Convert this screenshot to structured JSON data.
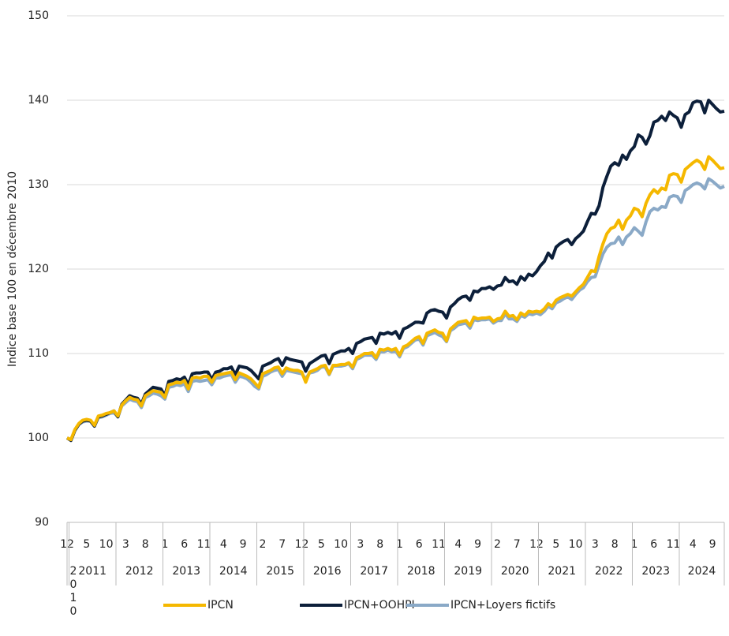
{
  "chart_data": {
    "type": "line",
    "y_label": "Indice base 100 en décembre 2010",
    "categories": [
      "12",
      null,
      null,
      null,
      null,
      "5",
      null,
      null,
      null,
      null,
      "10",
      null,
      null,
      null,
      null,
      "3",
      null,
      null,
      null,
      null,
      "8",
      null,
      null,
      null,
      null,
      "1",
      null,
      null,
      null,
      null,
      "6",
      null,
      null,
      null,
      null,
      "11",
      null,
      null,
      null,
      null,
      "4",
      null,
      null,
      null,
      null,
      "9",
      null,
      null,
      null,
      null,
      "2",
      null,
      null,
      null,
      null,
      "7",
      null,
      null,
      null,
      null,
      "12",
      null,
      null,
      null,
      null,
      "5",
      null,
      null,
      null,
      null,
      "10",
      null,
      null,
      null,
      null,
      "3",
      null,
      null,
      null,
      null,
      "8",
      null,
      null,
      null,
      null,
      "1",
      null,
      null,
      null,
      null,
      "6",
      null,
      null,
      null,
      null,
      "11",
      null,
      null,
      null,
      null,
      "4",
      null,
      null,
      null,
      null,
      "9",
      null,
      null,
      null,
      null,
      "2",
      null,
      null,
      null,
      null,
      "7",
      null,
      null,
      null,
      null,
      "12",
      null,
      null,
      null,
      null,
      "5",
      null,
      null,
      null,
      null,
      "10",
      null,
      null,
      null,
      null,
      "3",
      null,
      null,
      null,
      null,
      "8",
      null,
      null,
      null,
      null,
      "1",
      null,
      null,
      null,
      null,
      "6",
      null,
      null,
      null,
      null,
      "11",
      null,
      null,
      null,
      null,
      "4",
      null,
      null,
      null,
      null,
      "9",
      null,
      null,
      null
    ],
    "year_groups": [
      "2010",
      "2011",
      "2012",
      "2013",
      "2014",
      "2015",
      "2016",
      "2017",
      "2018",
      "2019",
      "2020",
      "2021",
      "2022",
      "2023",
      "2024"
    ],
    "ylim": [
      90,
      150
    ],
    "yticks": [
      90,
      100,
      110,
      120,
      130,
      140,
      150
    ],
    "grid": true,
    "legend": "bottom",
    "series": [
      {
        "name": "IPCN",
        "color": "#f5b800",
        "values": [
          100,
          99.8,
          101.0,
          101.7,
          102.1,
          102.2,
          102.1,
          101.5,
          102.6,
          102.7,
          102.9,
          103.0,
          103.2,
          102.6,
          103.9,
          104.4,
          104.8,
          104.6,
          104.5,
          103.8,
          105.0,
          105.3,
          105.6,
          105.5,
          105.4,
          104.8,
          106.3,
          106.4,
          106.6,
          106.5,
          106.8,
          105.8,
          107.1,
          107.2,
          107.1,
          107.3,
          107.3,
          106.6,
          107.4,
          107.5,
          107.6,
          107.7,
          107.8,
          106.9,
          107.7,
          107.5,
          107.3,
          107.0,
          106.5,
          106.0,
          107.6,
          107.8,
          108.0,
          108.3,
          108.4,
          107.6,
          108.3,
          108.1,
          108.0,
          108.0,
          107.8,
          106.6,
          107.8,
          108.0,
          108.2,
          108.5,
          108.6,
          107.6,
          108.6,
          108.6,
          108.7,
          108.7,
          108.9,
          108.4,
          109.5,
          109.7,
          110.0,
          110.0,
          110.1,
          109.5,
          110.5,
          110.4,
          110.6,
          110.4,
          110.6,
          109.8,
          110.8,
          111.0,
          111.4,
          111.8,
          112.0,
          111.2,
          112.4,
          112.6,
          112.8,
          112.5,
          112.4,
          111.5,
          112.9,
          113.3,
          113.7,
          113.8,
          113.9,
          113.3,
          114.3,
          114.1,
          114.2,
          114.2,
          114.3,
          113.8,
          114.1,
          114.2,
          115.0,
          114.4,
          114.5,
          114.0,
          114.8,
          114.5,
          115.0,
          114.9,
          115.0,
          114.9,
          115.3,
          115.9,
          115.6,
          116.3,
          116.6,
          116.8,
          117.0,
          116.8,
          117.3,
          117.8,
          118.2,
          119.0,
          119.8,
          119.7,
          121.5,
          123.0,
          124.2,
          124.8,
          125.0,
          125.8,
          124.7,
          125.8,
          126.3,
          127.2,
          127.0,
          126.2,
          127.8,
          128.8,
          129.4,
          129.0,
          129.6,
          129.4,
          131.1,
          131.3,
          131.2,
          130.3,
          131.8,
          132.2,
          132.6,
          132.9,
          132.6,
          131.8,
          133.3,
          132.9,
          132.4,
          131.9,
          132.0
        ]
      },
      {
        "name": "IPCN+OOHPI",
        "color": "#0c1f3a",
        "values": [
          100,
          99.7,
          100.9,
          101.6,
          102.0,
          102.1,
          102.0,
          101.4,
          102.5,
          102.6,
          102.8,
          103.0,
          103.2,
          102.5,
          104.0,
          104.5,
          105.0,
          104.8,
          104.7,
          104.0,
          105.2,
          105.6,
          106.0,
          105.9,
          105.8,
          105.0,
          106.7,
          106.8,
          107.0,
          106.9,
          107.2,
          106.3,
          107.6,
          107.7,
          107.7,
          107.8,
          107.8,
          106.9,
          107.8,
          107.9,
          108.2,
          108.2,
          108.4,
          107.5,
          108.5,
          108.4,
          108.3,
          108.0,
          107.5,
          107.0,
          108.5,
          108.7,
          108.9,
          109.2,
          109.4,
          108.6,
          109.5,
          109.3,
          109.2,
          109.1,
          109.0,
          107.9,
          108.8,
          109.1,
          109.4,
          109.7,
          109.8,
          108.8,
          109.9,
          110.1,
          110.3,
          110.3,
          110.6,
          110.0,
          111.2,
          111.4,
          111.7,
          111.8,
          111.9,
          111.2,
          112.4,
          112.3,
          112.5,
          112.3,
          112.6,
          111.8,
          112.9,
          113.1,
          113.4,
          113.7,
          113.7,
          113.6,
          114.8,
          115.1,
          115.2,
          115.0,
          114.9,
          114.2,
          115.5,
          115.9,
          116.4,
          116.7,
          116.8,
          116.3,
          117.4,
          117.3,
          117.7,
          117.7,
          117.9,
          117.6,
          118.0,
          118.1,
          119.0,
          118.5,
          118.6,
          118.2,
          119.1,
          118.7,
          119.4,
          119.2,
          119.7,
          120.4,
          120.9,
          121.9,
          121.3,
          122.6,
          123.0,
          123.3,
          123.5,
          122.9,
          123.6,
          124.0,
          124.5,
          125.6,
          126.6,
          126.5,
          127.5,
          129.7,
          131.0,
          132.2,
          132.6,
          132.3,
          133.5,
          133.0,
          134.0,
          134.5,
          135.9,
          135.6,
          134.8,
          135.8,
          137.4,
          137.6,
          138.1,
          137.6,
          138.6,
          138.2,
          137.9,
          136.8,
          138.3,
          138.6,
          139.7,
          139.9,
          139.8,
          138.5,
          140.0,
          139.5,
          139.0,
          138.6,
          138.7
        ]
      },
      {
        "name": "IPCN+Loyers fictifs",
        "color": "#8aa9c7",
        "values": [
          100,
          99.8,
          100.9,
          101.6,
          101.9,
          102.0,
          102.0,
          101.4,
          102.4,
          102.5,
          102.7,
          102.9,
          103.0,
          102.5,
          103.8,
          104.2,
          104.6,
          104.4,
          104.3,
          103.6,
          104.8,
          105.0,
          105.3,
          105.2,
          105.0,
          104.6,
          106.0,
          106.1,
          106.3,
          106.2,
          106.4,
          105.5,
          106.7,
          106.8,
          106.7,
          106.8,
          106.9,
          106.3,
          107.1,
          107.1,
          107.3,
          107.4,
          107.5,
          106.6,
          107.3,
          107.2,
          107.0,
          106.6,
          106.1,
          105.8,
          107.3,
          107.5,
          107.8,
          108.0,
          108.1,
          107.3,
          108.0,
          107.9,
          107.8,
          107.7,
          107.6,
          107.0,
          107.7,
          107.8,
          108.0,
          108.4,
          108.4,
          107.5,
          108.5,
          108.5,
          108.5,
          108.6,
          108.8,
          108.2,
          109.3,
          109.5,
          109.8,
          109.8,
          109.8,
          109.3,
          110.2,
          110.2,
          110.4,
          110.2,
          110.3,
          109.6,
          110.6,
          110.8,
          111.2,
          111.6,
          111.7,
          111.0,
          112.1,
          112.3,
          112.5,
          112.2,
          112.0,
          111.4,
          112.7,
          113.0,
          113.4,
          113.5,
          113.6,
          113.0,
          114.0,
          113.9,
          114.0,
          114.0,
          114.1,
          113.6,
          113.9,
          113.9,
          114.7,
          114.1,
          114.1,
          113.8,
          114.5,
          114.3,
          114.7,
          114.6,
          114.8,
          114.6,
          115.0,
          115.6,
          115.3,
          116.0,
          116.2,
          116.5,
          116.7,
          116.4,
          117.0,
          117.5,
          117.8,
          118.5,
          119.0,
          119.1,
          120.5,
          121.8,
          122.6,
          123.0,
          123.1,
          123.8,
          122.9,
          123.8,
          124.2,
          124.9,
          124.5,
          124.0,
          125.6,
          126.8,
          127.2,
          127.0,
          127.4,
          127.3,
          128.5,
          128.7,
          128.6,
          127.9,
          129.3,
          129.6,
          130.0,
          130.2,
          130.0,
          129.5,
          130.7,
          130.4,
          130.0,
          129.6,
          129.8
        ]
      }
    ]
  }
}
